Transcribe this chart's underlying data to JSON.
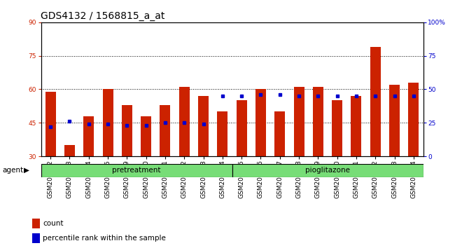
{
  "title": "GDS4132 / 1568815_a_at",
  "samples": [
    "GSM201542",
    "GSM201543",
    "GSM201544",
    "GSM201545",
    "GSM201829",
    "GSM201830",
    "GSM201831",
    "GSM201832",
    "GSM201833",
    "GSM201834",
    "GSM201835",
    "GSM201836",
    "GSM201837",
    "GSM201838",
    "GSM201839",
    "GSM201840",
    "GSM201841",
    "GSM201842",
    "GSM201843",
    "GSM201844"
  ],
  "counts": [
    59,
    35,
    48,
    60,
    53,
    48,
    53,
    61,
    57,
    50,
    55,
    60,
    50,
    61,
    61,
    55,
    57,
    79,
    62,
    63
  ],
  "percentile": [
    22,
    26,
    24,
    24,
    23,
    23,
    25,
    25,
    24,
    45,
    45,
    46,
    46,
    45,
    45,
    45,
    45,
    45,
    45,
    45
  ],
  "pretreatment_count": 10,
  "pioglitazone_count": 10,
  "bar_color": "#cc2200",
  "dot_color": "#0000cc",
  "group1_label": "pretreatment",
  "group2_label": "pioglitazone",
  "group_color": "#77dd77",
  "ylim_left": [
    30,
    90
  ],
  "yticks_left": [
    30,
    45,
    60,
    75,
    90
  ],
  "ylim_right": [
    0,
    100
  ],
  "yticks_right": [
    0,
    25,
    50,
    75,
    100
  ],
  "agent_label": "agent",
  "legend_count": "count",
  "legend_pct": "percentile rank within the sample",
  "background_color": "#ffffff",
  "grid_color": "#000000",
  "title_fontsize": 10,
  "tick_fontsize": 6.5,
  "bar_width": 0.55
}
